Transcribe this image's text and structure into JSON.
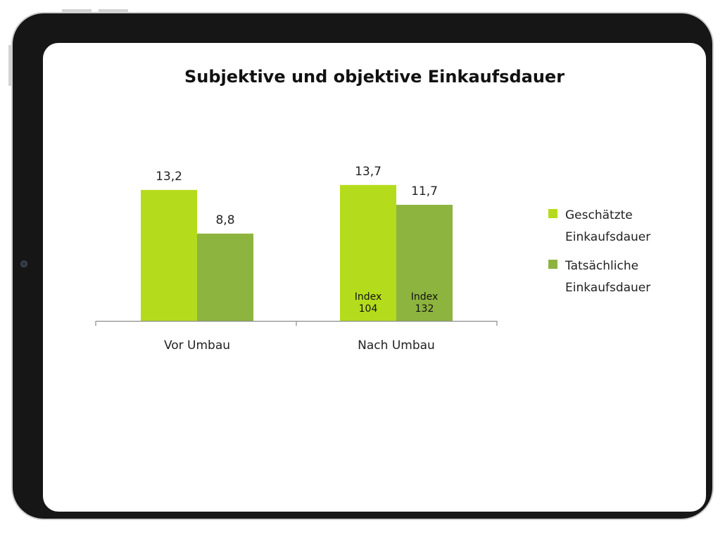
{
  "chart_data": {
    "type": "bar",
    "title": "Subjektive und objektive Einkaufsdauer",
    "categories": [
      "Vor Umbau",
      "Nach Umbau"
    ],
    "series": [
      {
        "name": "Geschätzte Einkaufsdauer",
        "values": [
          13.2,
          13.7
        ],
        "value_labels": [
          "13,2",
          "13,7"
        ],
        "inner_labels": [
          "",
          "Index\n104"
        ],
        "color": "#b5dc1c"
      },
      {
        "name": "Tatsächliche Einkaufsdauer",
        "values": [
          8.8,
          11.7
        ],
        "value_labels": [
          "8,8",
          "11,7"
        ],
        "inner_labels": [
          "",
          "Index\n132"
        ],
        "color": "#8db43f"
      }
    ],
    "ylim": [
      0,
      18
    ],
    "grid": false,
    "legend": "right",
    "legend_labels": [
      "Geschätzte\nEinkaufsdauer",
      "Tatsächliche\nEinkaufsdauer"
    ]
  },
  "colors": {
    "device_frame": "#161616",
    "screen": "#ffffff",
    "axis": "#8c8c8c"
  }
}
